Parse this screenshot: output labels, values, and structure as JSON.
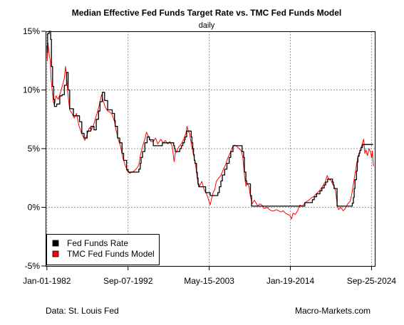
{
  "chart_data": {
    "type": "line",
    "title": "Median Effective Fed Funds Target Rate vs. TMC Fed Funds Model",
    "subtitle": "daily",
    "xlabel": "",
    "ylabel": "",
    "x_range": [
      "1981-11-01",
      "2025-03-01"
    ],
    "ylim": [
      -5,
      15
    ],
    "y_ticks": [
      -5,
      0,
      5,
      10,
      15
    ],
    "y_tick_labels": [
      "-5%",
      "0%",
      "5%",
      "10%",
      "15%"
    ],
    "x_ticks": [
      "1982-01-01",
      "1992-09-07",
      "2003-05-15",
      "2014-01-19",
      "2024-09-25"
    ],
    "x_tick_labels": [
      "Jan-01-1982",
      "Sep-07-1992",
      "May-15-2003",
      "Jan-19-2014",
      "Sep-25-2024"
    ],
    "grid": true,
    "legend_position": "bottom-left",
    "series": [
      {
        "name": "Fed Funds Rate",
        "color": "#000000",
        "step": true,
        "points": [
          [
            1982.0,
            13.2
          ],
          [
            1982.1,
            14.8
          ],
          [
            1982.3,
            15.0
          ],
          [
            1982.5,
            14.3
          ],
          [
            1982.6,
            12.0
          ],
          [
            1982.75,
            10.3
          ],
          [
            1982.9,
            9.2
          ],
          [
            1983.0,
            8.6
          ],
          [
            1983.3,
            8.8
          ],
          [
            1983.7,
            9.5
          ],
          [
            1984.0,
            9.6
          ],
          [
            1984.3,
            10.4
          ],
          [
            1984.6,
            11.5
          ],
          [
            1984.8,
            10.0
          ],
          [
            1985.0,
            8.4
          ],
          [
            1985.5,
            7.8
          ],
          [
            1986.0,
            7.8
          ],
          [
            1986.3,
            7.3
          ],
          [
            1986.6,
            6.3
          ],
          [
            1986.9,
            5.9
          ],
          [
            1987.3,
            6.5
          ],
          [
            1987.8,
            6.9
          ],
          [
            1988.2,
            6.6
          ],
          [
            1988.5,
            7.5
          ],
          [
            1988.8,
            8.2
          ],
          [
            1989.0,
            9.0
          ],
          [
            1989.3,
            9.8
          ],
          [
            1989.6,
            9.1
          ],
          [
            1990.0,
            8.3
          ],
          [
            1990.6,
            8.0
          ],
          [
            1990.9,
            7.4
          ],
          [
            1991.0,
            6.9
          ],
          [
            1991.3,
            5.9
          ],
          [
            1991.6,
            5.5
          ],
          [
            1991.9,
            4.6
          ],
          [
            1992.1,
            4.0
          ],
          [
            1992.5,
            3.2
          ],
          [
            1992.7,
            3.0
          ],
          [
            1993.5,
            3.0
          ],
          [
            1994.1,
            3.25
          ],
          [
            1994.3,
            3.75
          ],
          [
            1994.4,
            4.25
          ],
          [
            1994.6,
            4.75
          ],
          [
            1994.9,
            5.5
          ],
          [
            1995.2,
            6.0
          ],
          [
            1995.5,
            5.75
          ],
          [
            1996.0,
            5.25
          ],
          [
            1997.2,
            5.5
          ],
          [
            1998.7,
            5.25
          ],
          [
            1998.8,
            5.0
          ],
          [
            1998.9,
            4.75
          ],
          [
            1999.5,
            5.0
          ],
          [
            1999.7,
            5.25
          ],
          [
            1999.9,
            5.5
          ],
          [
            2000.1,
            5.75
          ],
          [
            2000.2,
            6.0
          ],
          [
            2000.4,
            6.5
          ],
          [
            2001.0,
            6.0
          ],
          [
            2001.1,
            5.5
          ],
          [
            2001.2,
            5.0
          ],
          [
            2001.3,
            4.5
          ],
          [
            2001.4,
            4.0
          ],
          [
            2001.5,
            3.75
          ],
          [
            2001.7,
            3.0
          ],
          [
            2001.8,
            2.5
          ],
          [
            2001.9,
            2.0
          ],
          [
            2002.0,
            1.75
          ],
          [
            2002.9,
            1.25
          ],
          [
            2003.5,
            1.0
          ],
          [
            2004.5,
            1.25
          ],
          [
            2004.7,
            1.75
          ],
          [
            2004.9,
            2.25
          ],
          [
            2005.1,
            2.75
          ],
          [
            2005.4,
            3.25
          ],
          [
            2005.7,
            3.75
          ],
          [
            2006.0,
            4.25
          ],
          [
            2006.2,
            4.75
          ],
          [
            2006.5,
            5.25
          ],
          [
            2007.7,
            4.75
          ],
          [
            2007.9,
            4.25
          ],
          [
            2008.0,
            3.0
          ],
          [
            2008.2,
            2.25
          ],
          [
            2008.3,
            2.0
          ],
          [
            2008.8,
            1.0
          ],
          [
            2008.95,
            0.1
          ],
          [
            2015.95,
            0.4
          ],
          [
            2016.95,
            0.65
          ],
          [
            2017.2,
            0.9
          ],
          [
            2017.5,
            1.15
          ],
          [
            2017.95,
            1.4
          ],
          [
            2018.2,
            1.65
          ],
          [
            2018.5,
            1.9
          ],
          [
            2018.7,
            2.15
          ],
          [
            2018.95,
            2.4
          ],
          [
            2019.6,
            2.15
          ],
          [
            2019.7,
            1.9
          ],
          [
            2019.8,
            1.6
          ],
          [
            2020.2,
            0.1
          ],
          [
            2022.2,
            0.35
          ],
          [
            2022.35,
            0.85
          ],
          [
            2022.45,
            1.6
          ],
          [
            2022.55,
            2.35
          ],
          [
            2022.75,
            3.1
          ],
          [
            2022.85,
            3.85
          ],
          [
            2022.95,
            4.35
          ],
          [
            2023.1,
            4.6
          ],
          [
            2023.2,
            4.85
          ],
          [
            2023.35,
            5.1
          ],
          [
            2023.55,
            5.35
          ],
          [
            2024.7,
            5.35
          ],
          [
            2024.95,
            5.35
          ]
        ]
      },
      {
        "name": "TMC Fed Funds Model",
        "color": "#ff0000",
        "step": false,
        "points": [
          [
            1982.0,
            13.8
          ],
          [
            1982.05,
            12.5
          ],
          [
            1982.15,
            14.0
          ],
          [
            1982.3,
            13.0
          ],
          [
            1982.45,
            12.5
          ],
          [
            1982.55,
            11.0
          ],
          [
            1982.7,
            10.0
          ],
          [
            1982.85,
            9.0
          ],
          [
            1983.0,
            8.7
          ],
          [
            1983.2,
            9.5
          ],
          [
            1983.5,
            9.2
          ],
          [
            1983.8,
            9.8
          ],
          [
            1984.1,
            10.5
          ],
          [
            1984.3,
            11.0
          ],
          [
            1984.45,
            12.0
          ],
          [
            1984.6,
            11.0
          ],
          [
            1984.8,
            9.5
          ],
          [
            1985.0,
            8.3
          ],
          [
            1985.3,
            8.0
          ],
          [
            1985.6,
            7.6
          ],
          [
            1985.9,
            8.0
          ],
          [
            1986.2,
            7.0
          ],
          [
            1986.5,
            6.4
          ],
          [
            1986.8,
            6.0
          ],
          [
            1987.0,
            5.7
          ],
          [
            1987.3,
            6.2
          ],
          [
            1987.6,
            6.8
          ],
          [
            1987.85,
            6.6
          ],
          [
            1988.1,
            6.9
          ],
          [
            1988.4,
            7.6
          ],
          [
            1988.7,
            8.2
          ],
          [
            1989.0,
            9.0
          ],
          [
            1989.2,
            9.6
          ],
          [
            1989.4,
            9.1
          ],
          [
            1989.7,
            8.5
          ],
          [
            1990.0,
            8.2
          ],
          [
            1990.3,
            8.1
          ],
          [
            1990.6,
            7.9
          ],
          [
            1990.9,
            7.3
          ],
          [
            1991.1,
            6.6
          ],
          [
            1991.4,
            5.8
          ],
          [
            1991.7,
            5.2
          ],
          [
            1992.0,
            4.2
          ],
          [
            1992.3,
            3.6
          ],
          [
            1992.6,
            3.1
          ],
          [
            1992.9,
            2.9
          ],
          [
            1993.2,
            3.0
          ],
          [
            1993.5,
            3.1
          ],
          [
            1993.8,
            3.3
          ],
          [
            1994.1,
            3.6
          ],
          [
            1994.3,
            4.4
          ],
          [
            1994.6,
            5.2
          ],
          [
            1994.9,
            5.8
          ],
          [
            1995.1,
            6.4
          ],
          [
            1995.4,
            6.0
          ],
          [
            1995.7,
            5.6
          ],
          [
            1996.0,
            5.6
          ],
          [
            1996.3,
            5.9
          ],
          [
            1996.6,
            5.4
          ],
          [
            1997.0,
            5.8
          ],
          [
            1997.3,
            5.5
          ],
          [
            1997.6,
            5.7
          ],
          [
            1997.9,
            5.4
          ],
          [
            1998.2,
            5.6
          ],
          [
            1998.5,
            5.2
          ],
          [
            1998.75,
            3.9
          ],
          [
            1998.9,
            4.6
          ],
          [
            1999.1,
            4.8
          ],
          [
            1999.4,
            5.2
          ],
          [
            1999.7,
            5.4
          ],
          [
            2000.0,
            5.8
          ],
          [
            2000.3,
            6.3
          ],
          [
            2000.45,
            6.9
          ],
          [
            2000.6,
            6.5
          ],
          [
            2000.8,
            6.3
          ],
          [
            2001.0,
            5.4
          ],
          [
            2001.2,
            4.8
          ],
          [
            2001.4,
            4.2
          ],
          [
            2001.6,
            3.5
          ],
          [
            2001.75,
            2.7
          ],
          [
            2001.9,
            1.9
          ],
          [
            2002.1,
            1.8
          ],
          [
            2002.4,
            2.2
          ],
          [
            2002.7,
            1.5
          ],
          [
            2002.9,
            1.3
          ],
          [
            2003.1,
            1.0
          ],
          [
            2003.3,
            0.6
          ],
          [
            2003.5,
            0.2
          ],
          [
            2003.7,
            0.8
          ],
          [
            2003.9,
            1.3
          ],
          [
            2004.1,
            1.5
          ],
          [
            2004.3,
            2.2
          ],
          [
            2004.6,
            2.5
          ],
          [
            2004.9,
            2.7
          ],
          [
            2005.2,
            3.2
          ],
          [
            2005.5,
            3.6
          ],
          [
            2005.8,
            4.2
          ],
          [
            2006.1,
            4.6
          ],
          [
            2006.4,
            5.1
          ],
          [
            2006.7,
            5.3
          ],
          [
            2007.0,
            5.2
          ],
          [
            2007.3,
            5.0
          ],
          [
            2007.6,
            4.8
          ],
          [
            2007.8,
            4.2
          ],
          [
            2008.0,
            2.8
          ],
          [
            2008.2,
            1.8
          ],
          [
            2008.4,
            2.0
          ],
          [
            2008.6,
            1.8
          ],
          [
            2008.8,
            0.9
          ],
          [
            2009.0,
            0.3
          ],
          [
            2009.3,
            0.6
          ],
          [
            2009.5,
            0.4
          ],
          [
            2009.8,
            0.1
          ],
          [
            2010.0,
            0.3
          ],
          [
            2010.3,
            0.2
          ],
          [
            2010.6,
            -0.1
          ],
          [
            2011.0,
            0.0
          ],
          [
            2011.3,
            -0.2
          ],
          [
            2011.6,
            -0.3
          ],
          [
            2011.9,
            -0.3
          ],
          [
            2012.2,
            -0.2
          ],
          [
            2012.5,
            -0.3
          ],
          [
            2012.8,
            -0.4
          ],
          [
            2013.1,
            -0.3
          ],
          [
            2013.4,
            -0.5
          ],
          [
            2013.7,
            -0.6
          ],
          [
            2014.0,
            -0.7
          ],
          [
            2014.2,
            -1.0
          ],
          [
            2014.4,
            -0.5
          ],
          [
            2014.7,
            -0.6
          ],
          [
            2015.0,
            -0.3
          ],
          [
            2015.3,
            0.2
          ],
          [
            2015.6,
            0.1
          ],
          [
            2015.9,
            0.3
          ],
          [
            2016.2,
            0.5
          ],
          [
            2016.5,
            0.6
          ],
          [
            2016.8,
            0.8
          ],
          [
            2017.1,
            0.9
          ],
          [
            2017.4,
            1.1
          ],
          [
            2017.7,
            1.3
          ],
          [
            2018.0,
            1.5
          ],
          [
            2018.3,
            1.8
          ],
          [
            2018.6,
            2.1
          ],
          [
            2018.9,
            2.7
          ],
          [
            2019.1,
            2.4
          ],
          [
            2019.4,
            2.3
          ],
          [
            2019.6,
            2.0
          ],
          [
            2019.8,
            1.8
          ],
          [
            2020.0,
            1.4
          ],
          [
            2020.2,
            0.3
          ],
          [
            2020.4,
            -0.2
          ],
          [
            2020.7,
            0.0
          ],
          [
            2021.0,
            -0.3
          ],
          [
            2021.3,
            -0.1
          ],
          [
            2021.6,
            0.3
          ],
          [
            2021.9,
            0.5
          ],
          [
            2022.1,
            1.0
          ],
          [
            2022.3,
            1.8
          ],
          [
            2022.5,
            2.6
          ],
          [
            2022.7,
            3.4
          ],
          [
            2022.9,
            4.2
          ],
          [
            2023.1,
            4.6
          ],
          [
            2023.3,
            4.9
          ],
          [
            2023.5,
            5.4
          ],
          [
            2023.7,
            5.8
          ],
          [
            2023.85,
            4.6
          ],
          [
            2024.0,
            4.9
          ],
          [
            2024.2,
            4.4
          ],
          [
            2024.4,
            5.0
          ],
          [
            2024.6,
            4.7
          ],
          [
            2024.75,
            4.2
          ],
          [
            2024.85,
            4.8
          ],
          [
            2024.95,
            3.8
          ],
          [
            2025.0,
            3.5
          ]
        ]
      }
    ]
  },
  "footer": {
    "source": "Data: St. Louis Fed",
    "brand": "Macro-Markets.com"
  }
}
